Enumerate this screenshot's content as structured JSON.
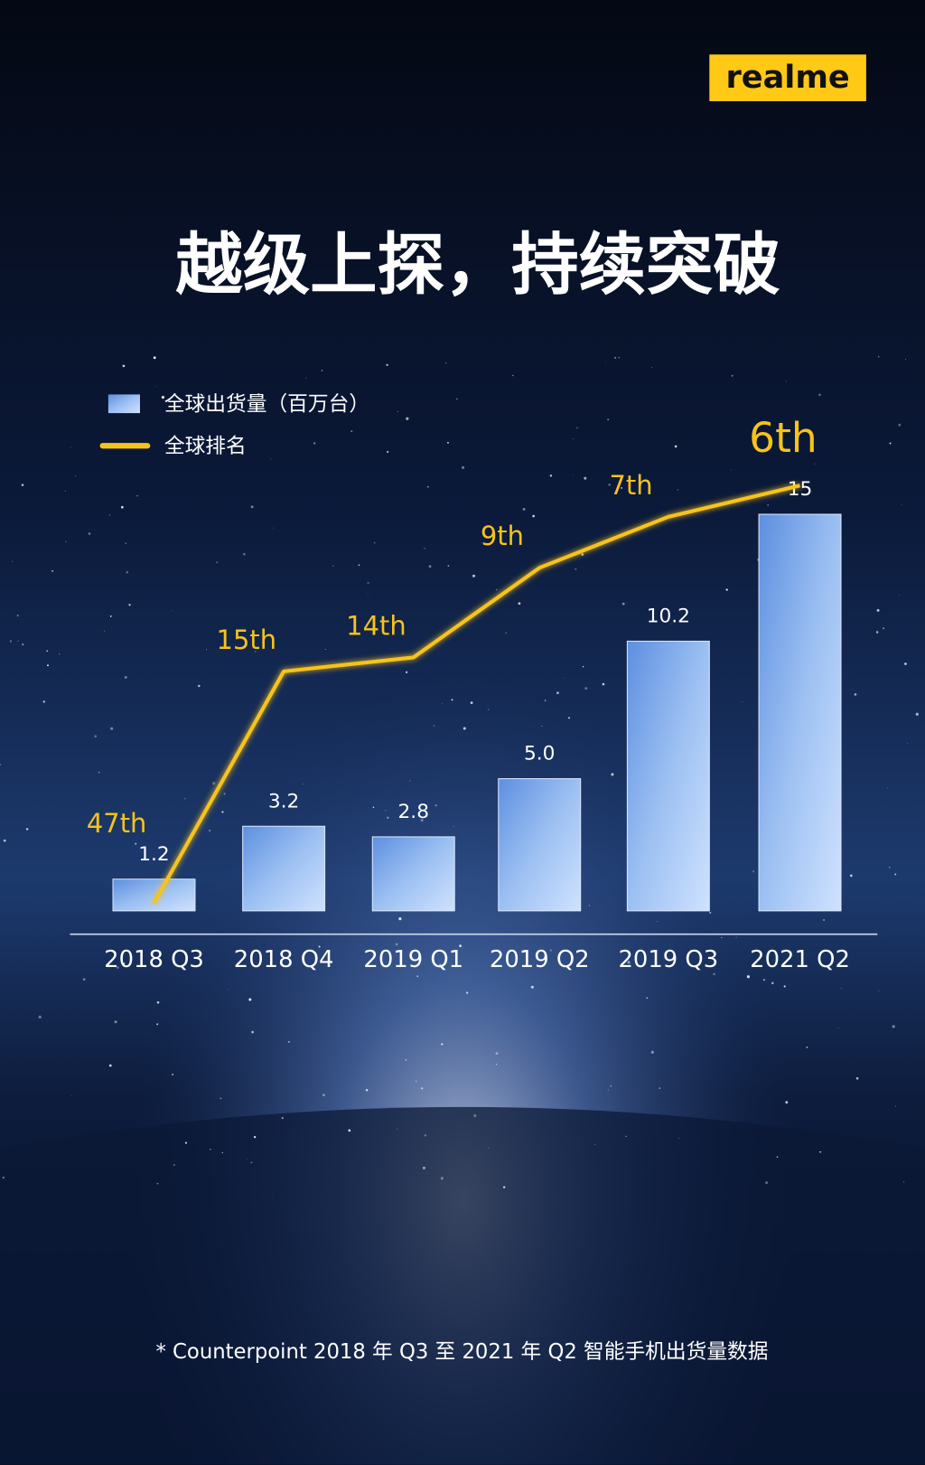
{
  "logo": "realme",
  "chart_data": {
    "type": "combo",
    "title": "越级上探，持续突破",
    "categories": [
      "2018 Q3",
      "2018 Q4",
      "2019 Q1",
      "2019 Q2",
      "2019 Q3",
      "2021 Q2"
    ],
    "series": [
      {
        "name": "全球出货量（百万台）",
        "type": "bar",
        "color": "#a9c8f4",
        "values": [
          1.2,
          3.2,
          2.8,
          5.0,
          10.2,
          15
        ],
        "value_labels": [
          "1.2",
          "3.2",
          "2.8",
          "5.0",
          "10.2",
          "15"
        ]
      },
      {
        "name": "全球排名",
        "type": "line",
        "axis": "y2",
        "color": "#f7c31b",
        "values": [
          47,
          15,
          14,
          9,
          7,
          6
        ],
        "value_labels": [
          "47th",
          "15th",
          "14th",
          "9th",
          "7th",
          "6th"
        ]
      }
    ],
    "ylim": [
      0,
      16
    ],
    "y2lim": [
      50,
      5
    ],
    "y2log": true,
    "footnote": "* Counterpoint 2018 年 Q3 至 2021 年 Q2 智能手机出货量数据"
  }
}
